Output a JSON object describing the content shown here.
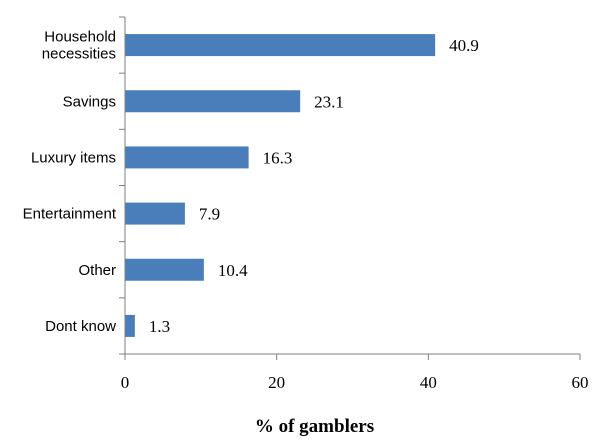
{
  "chart_data": {
    "type": "bar",
    "orientation": "horizontal",
    "categories": [
      "Household necessities",
      "Savings",
      "Luxury items",
      "Entertainment",
      "Other",
      "Dont know"
    ],
    "category_lines": [
      [
        "Household",
        "necessities"
      ],
      [
        "Savings"
      ],
      [
        "Luxury items"
      ],
      [
        "Entertainment"
      ],
      [
        "Other"
      ],
      [
        "Dont know"
      ]
    ],
    "values": [
      40.9,
      23.1,
      16.3,
      7.9,
      10.4,
      1.3
    ],
    "value_labels": [
      "40.9",
      "23.1",
      "16.3",
      "7.9",
      "10.4",
      "1.3"
    ],
    "xlabel": "% of gamblers",
    "ylabel": "",
    "title": "",
    "xlim": [
      0,
      60
    ],
    "xticks": [
      "0",
      "20",
      "40",
      "60"
    ],
    "grid": false,
    "legend": "none",
    "bar_color": "#4a7ebb"
  }
}
